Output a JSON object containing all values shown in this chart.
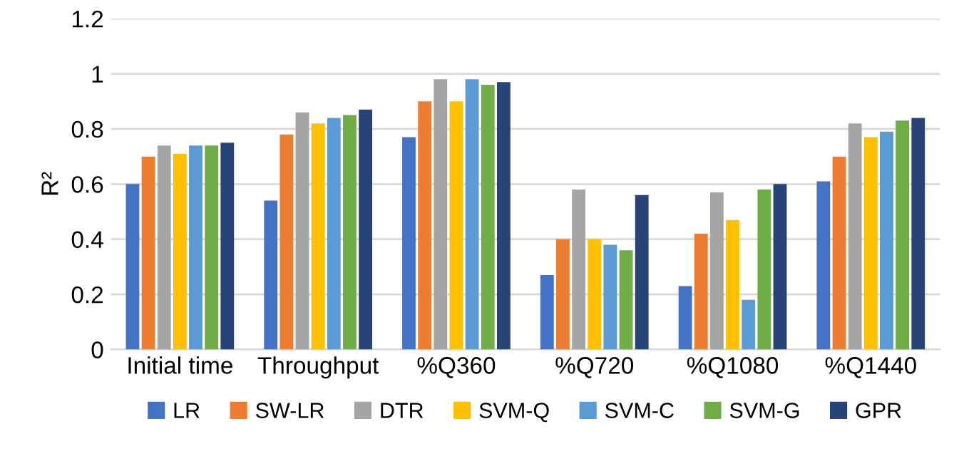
{
  "chart_data": {
    "type": "bar",
    "ylabel": "R²",
    "categories": [
      "Initial time",
      "Throughput",
      "%Q360",
      "%Q720",
      "%Q1080",
      "%Q1440"
    ],
    "series": [
      {
        "name": "LR",
        "color": "#4472c4",
        "values": [
          0.6,
          0.54,
          0.77,
          0.27,
          0.23,
          0.61
        ]
      },
      {
        "name": "SW-LR",
        "color": "#ed7d31",
        "values": [
          0.7,
          0.78,
          0.9,
          0.4,
          0.42,
          0.7
        ]
      },
      {
        "name": "DTR",
        "color": "#a5a5a5",
        "values": [
          0.74,
          0.86,
          0.98,
          0.58,
          0.57,
          0.82
        ]
      },
      {
        "name": "SVM-Q",
        "color": "#ffc000",
        "values": [
          0.71,
          0.82,
          0.9,
          0.4,
          0.47,
          0.77
        ]
      },
      {
        "name": "SVM-C",
        "color": "#5b9bd5",
        "values": [
          0.74,
          0.84,
          0.98,
          0.38,
          0.18,
          0.79
        ]
      },
      {
        "name": "SVM-G",
        "color": "#70ad47",
        "values": [
          0.74,
          0.85,
          0.96,
          0.36,
          0.58,
          0.83
        ]
      },
      {
        "name": "GPR",
        "color": "#264478",
        "values": [
          0.75,
          0.87,
          0.97,
          0.56,
          0.6,
          0.84
        ]
      }
    ],
    "ylim": [
      0,
      1.2
    ],
    "yticks": [
      0,
      0.2,
      0.4,
      0.6,
      0.8,
      1,
      1.2
    ],
    "grid": "y",
    "legend": "bottom"
  }
}
